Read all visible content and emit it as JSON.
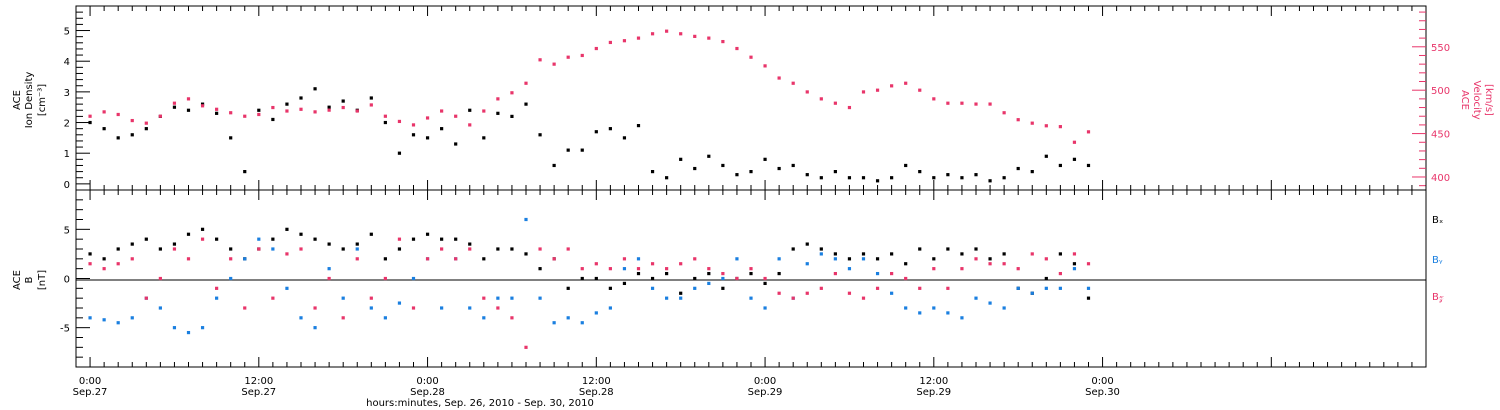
{
  "colors": {
    "axis": "#000000",
    "density": "#000000",
    "velocity": "#e8356a",
    "bx": "#000000",
    "by": "#1a7fe0",
    "bz": "#e8356a"
  },
  "xaxis": {
    "label": "hours:minutes, Sep. 26, 2010 - Sep. 30, 2010",
    "range_hours": [
      -1,
      95
    ],
    "ticks": [
      {
        "t": 0,
        "time": "0:00",
        "day": "Sep.27"
      },
      {
        "t": 12,
        "time": "12:00",
        "day": "Sep.27"
      },
      {
        "t": 24,
        "time": "0:00",
        "day": "Sep.28"
      },
      {
        "t": 36,
        "time": "12:00",
        "day": "Sep.28"
      },
      {
        "t": 48,
        "time": "0:00",
        "day": "Sep.29"
      },
      {
        "t": 60,
        "time": "12:00",
        "day": "Sep.29"
      },
      {
        "t": 72,
        "time": "0:00",
        "day": "Sep.30"
      }
    ]
  },
  "chart_data": [
    {
      "type": "scatter",
      "left_axis": {
        "label_lines": [
          "ACE",
          "Ion Density",
          "[cm⁻³]"
        ],
        "ylim": [
          -0.2,
          5.8
        ],
        "ticks": [
          0,
          1,
          2,
          3,
          4,
          5
        ]
      },
      "right_axis": {
        "label_lines": [
          "ACE",
          "Velocity",
          "[km/s]"
        ],
        "ylim": [
          385,
          597
        ],
        "ticks": [
          400,
          450,
          500,
          550
        ]
      },
      "series": [
        {
          "key": "density",
          "axis": "left",
          "x": [
            0,
            1,
            2,
            3,
            4,
            5,
            6,
            7,
            8,
            9,
            10,
            11,
            12,
            13,
            14,
            15,
            16,
            17,
            18,
            19,
            20,
            21,
            22,
            23,
            24,
            25,
            26,
            27,
            28,
            29,
            30,
            31,
            32,
            33,
            34,
            35,
            36,
            37,
            38,
            39,
            40,
            41,
            42,
            43,
            44,
            45,
            46,
            47,
            48,
            49,
            50,
            51,
            52,
            53,
            54,
            55,
            56,
            57,
            58,
            59,
            60,
            61,
            62,
            63,
            64,
            65,
            66,
            67,
            68,
            69,
            70,
            71
          ],
          "y": [
            2.0,
            1.8,
            1.5,
            1.6,
            1.8,
            2.2,
            2.5,
            2.4,
            2.6,
            2.3,
            1.5,
            0.4,
            2.4,
            2.1,
            2.6,
            2.8,
            3.1,
            2.5,
            2.7,
            2.4,
            2.8,
            2.0,
            1.0,
            1.6,
            1.5,
            1.8,
            1.3,
            2.4,
            1.5,
            2.3,
            2.2,
            2.6,
            1.6,
            0.6,
            1.1,
            1.1,
            1.7,
            1.8,
            1.5,
            1.9,
            0.4,
            0.2,
            0.8,
            0.5,
            0.9,
            0.6,
            0.3,
            0.4,
            0.8,
            0.5,
            0.6,
            0.3,
            0.2,
            0.4,
            0.2,
            0.2,
            0.1,
            0.2,
            0.6,
            0.4,
            0.2,
            0.3,
            0.2,
            0.3,
            0.1,
            0.2,
            0.5,
            0.4,
            0.9,
            0.6,
            0.8,
            0.6
          ]
        },
        {
          "key": "velocity",
          "axis": "right",
          "x": [
            0,
            1,
            2,
            3,
            4,
            5,
            6,
            7,
            8,
            9,
            10,
            11,
            12,
            13,
            14,
            15,
            16,
            17,
            18,
            19,
            20,
            21,
            22,
            23,
            24,
            25,
            26,
            27,
            28,
            29,
            30,
            31,
            32,
            33,
            34,
            35,
            36,
            37,
            38,
            39,
            40,
            41,
            42,
            43,
            44,
            45,
            46,
            47,
            48,
            49,
            50,
            51,
            52,
            53,
            54,
            55,
            56,
            57,
            58,
            59,
            60,
            61,
            62,
            63,
            64,
            65,
            66,
            67,
            68,
            69,
            70,
            71
          ],
          "y": [
            470,
            475,
            472,
            465,
            462,
            470,
            485,
            490,
            482,
            478,
            474,
            470,
            472,
            480,
            476,
            478,
            475,
            477,
            480,
            476,
            483,
            470,
            464,
            460,
            468,
            476,
            470,
            460,
            476,
            490,
            497,
            508,
            535,
            530,
            538,
            540,
            548,
            555,
            557,
            560,
            565,
            568,
            565,
            562,
            560,
            556,
            548,
            538,
            528,
            514,
            508,
            498,
            490,
            485,
            480,
            498,
            500,
            505,
            508,
            500,
            490,
            485,
            485,
            484,
            484,
            474,
            466,
            462,
            459,
            458,
            440,
            452
          ]
        }
      ]
    },
    {
      "type": "scatter",
      "left_axis": {
        "label_lines": [
          "ACE",
          "B",
          "[nT]"
        ],
        "ylim": [
          -9,
          9
        ],
        "ticks": [
          -5,
          0,
          5
        ]
      },
      "legend": [
        "Bₓ",
        "Bᵧ",
        "B𝓏"
      ],
      "series": [
        {
          "key": "bx",
          "name": "Bₓ",
          "x": [
            0,
            1,
            2,
            3,
            4,
            5,
            6,
            7,
            8,
            9,
            10,
            11,
            12,
            13,
            14,
            15,
            16,
            17,
            18,
            19,
            20,
            21,
            22,
            23,
            24,
            25,
            26,
            27,
            28,
            29,
            30,
            31,
            32,
            33,
            34,
            35,
            36,
            37,
            38,
            39,
            40,
            41,
            42,
            43,
            44,
            45,
            46,
            47,
            48,
            49,
            50,
            51,
            52,
            53,
            54,
            55,
            56,
            57,
            58,
            59,
            60,
            61,
            62,
            63,
            64,
            65,
            66,
            67,
            68,
            69,
            70,
            71
          ],
          "y": [
            2.5,
            2.0,
            3.0,
            3.5,
            4.0,
            3.0,
            3.5,
            4.5,
            5.0,
            4.0,
            3.0,
            2.0,
            3.0,
            4.0,
            5.0,
            4.5,
            4.0,
            3.5,
            3.0,
            3.5,
            4.5,
            2.0,
            3.0,
            4.0,
            4.5,
            4.0,
            4.0,
            3.5,
            2.0,
            3.0,
            3.0,
            2.5,
            1.0,
            2.0,
            -1.0,
            0.0,
            0.0,
            -1.0,
            -0.5,
            0.5,
            0.0,
            0.5,
            -1.5,
            0.0,
            0.5,
            -1.0,
            0.0,
            0.5,
            -0.5,
            0.5,
            3.0,
            3.5,
            3.0,
            2.5,
            2.0,
            2.5,
            2.0,
            2.5,
            1.5,
            3.0,
            2.0,
            3.0,
            2.5,
            3.0,
            2.0,
            2.5,
            -1.0,
            -1.5,
            0.0,
            2.5,
            1.5,
            -2.0
          ]
        },
        {
          "key": "by",
          "name": "Bᵧ",
          "x": [
            0,
            1,
            2,
            3,
            4,
            5,
            6,
            7,
            8,
            9,
            10,
            11,
            12,
            13,
            14,
            15,
            16,
            17,
            18,
            19,
            20,
            21,
            22,
            23,
            24,
            25,
            26,
            27,
            28,
            29,
            30,
            31,
            32,
            33,
            34,
            35,
            36,
            37,
            38,
            39,
            40,
            41,
            42,
            43,
            44,
            45,
            46,
            47,
            48,
            49,
            50,
            51,
            52,
            53,
            54,
            55,
            56,
            57,
            58,
            59,
            60,
            61,
            62,
            63,
            64,
            65,
            66,
            67,
            68,
            69,
            70,
            71
          ],
          "y": [
            -4.0,
            -4.2,
            -4.5,
            -4.0,
            -2.0,
            -3.0,
            -5.0,
            -5.5,
            -5.0,
            -2.0,
            0.0,
            2.0,
            4.0,
            3.0,
            -1.0,
            -4.0,
            -5.0,
            1.0,
            -2.0,
            3.0,
            -3.0,
            -4.0,
            -2.5,
            0.0,
            2.0,
            -3.0,
            2.0,
            -3.0,
            -4.0,
            -2.0,
            -2.0,
            6.0,
            -2.0,
            -4.5,
            -4.0,
            -4.5,
            -3.5,
            -3.0,
            1.0,
            2.0,
            -1.0,
            -2.0,
            -2.0,
            -1.0,
            -0.5,
            0.0,
            2.0,
            -2.0,
            -3.0,
            2.0,
            -2.0,
            1.5,
            2.5,
            2.0,
            1.0,
            2.0,
            0.5,
            -1.5,
            -3.0,
            -3.5,
            -3.0,
            -3.5,
            -4.0,
            -2.0,
            -2.5,
            -3.0,
            -1.0,
            -1.5,
            -1.0,
            -1.0,
            1.0,
            -1.0
          ]
        },
        {
          "key": "bz",
          "name": "B𝓏",
          "x": [
            0,
            1,
            2,
            3,
            4,
            5,
            6,
            7,
            8,
            9,
            10,
            11,
            12,
            13,
            14,
            15,
            16,
            17,
            18,
            19,
            20,
            21,
            22,
            23,
            24,
            25,
            26,
            27,
            28,
            29,
            30,
            31,
            32,
            33,
            34,
            35,
            36,
            37,
            38,
            39,
            40,
            41,
            42,
            43,
            44,
            45,
            46,
            47,
            48,
            49,
            50,
            51,
            52,
            53,
            54,
            55,
            56,
            57,
            58,
            59,
            60,
            61,
            62,
            63,
            64,
            65,
            66,
            67,
            68,
            69,
            70,
            71
          ],
          "y": [
            1.5,
            1.0,
            1.5,
            2.0,
            -2.0,
            0.0,
            3.0,
            2.0,
            4.0,
            -1.0,
            2.0,
            -3.0,
            3.0,
            -2.0,
            2.5,
            3.0,
            -3.0,
            0.0,
            -4.0,
            2.0,
            -2.0,
            0.0,
            4.0,
            -3.0,
            2.0,
            3.0,
            2.0,
            3.0,
            -2.0,
            -3.0,
            -4.0,
            -7.0,
            3.0,
            2.0,
            3.0,
            1.0,
            1.5,
            1.0,
            2.0,
            1.0,
            1.5,
            1.0,
            1.5,
            2.0,
            1.0,
            0.5,
            0.0,
            1.0,
            0.0,
            -1.5,
            -2.0,
            -1.5,
            -1.0,
            0.5,
            -1.5,
            -2.0,
            -1.0,
            0.5,
            0.0,
            -1.0,
            1.0,
            -1.0,
            1.0,
            2.0,
            1.5,
            1.5,
            1.0,
            2.5,
            2.0,
            0.5,
            2.5,
            1.5
          ]
        }
      ]
    }
  ]
}
